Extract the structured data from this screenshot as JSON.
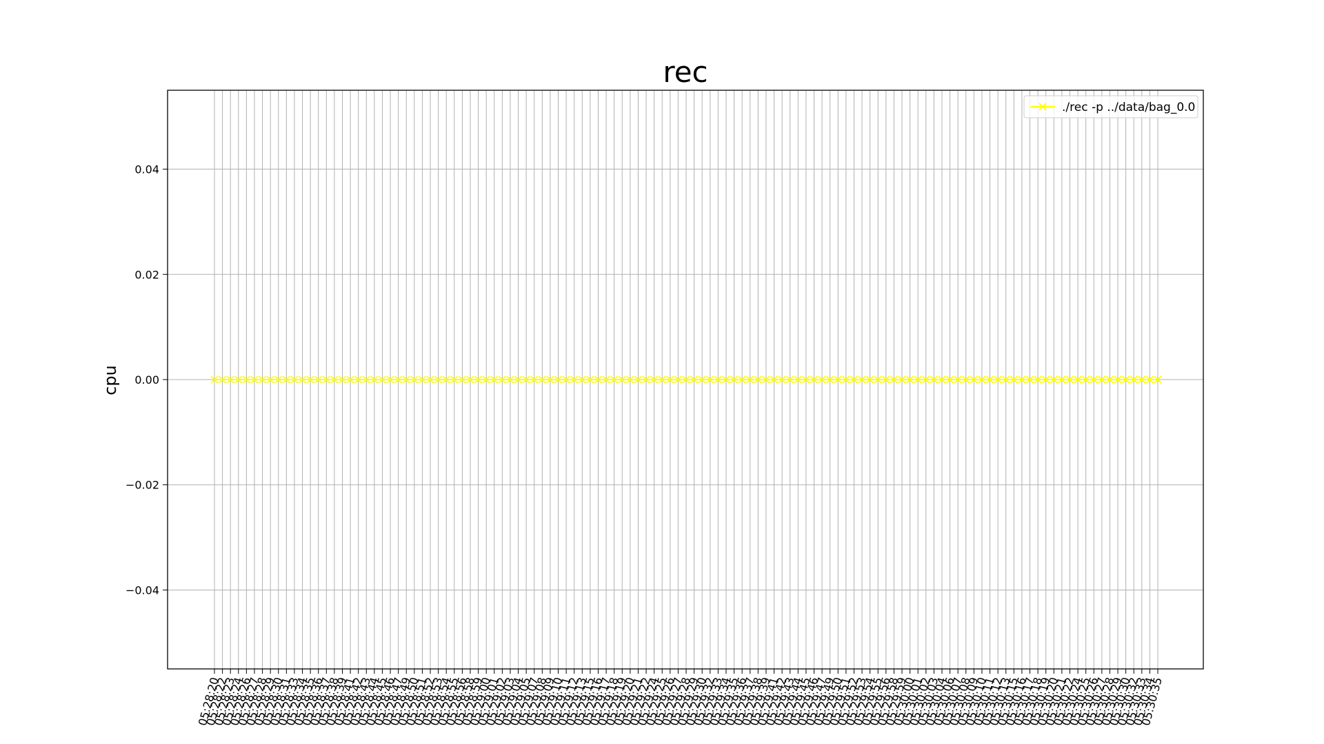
{
  "chart_data": {
    "type": "line",
    "title": "rec",
    "xlabel": "",
    "ylabel": "cpu",
    "ylim": [
      -0.055,
      0.055
    ],
    "yticks": [
      -0.04,
      -0.02,
      0.0,
      0.02,
      0.04
    ],
    "ytick_labels": [
      "−0.04",
      "−0.02",
      "0.00",
      "0.02",
      "0.04"
    ],
    "grid": true,
    "legend_position": "top-right",
    "categories": [
      "05:28:20",
      "05:28:22",
      "05:28:23",
      "05:28:24",
      "05:28:26",
      "05:28:27",
      "05:28:28",
      "05:28:29",
      "05:28:30",
      "05:28:31",
      "05:28:33",
      "05:28:34",
      "05:28:35",
      "05:28:36",
      "05:28:37",
      "05:28:38",
      "05:28:39",
      "05:28:41",
      "05:28:42",
      "05:28:43",
      "05:28:44",
      "05:28:45",
      "05:28:46",
      "05:28:47",
      "05:28:49",
      "05:28:50",
      "05:28:51",
      "05:28:52",
      "05:28:53",
      "05:28:54",
      "05:28:55",
      "05:28:56",
      "05:28:58",
      "05:28:59",
      "05:29:00",
      "05:29:01",
      "05:29:02",
      "05:29:03",
      "05:29:04",
      "05:29:05",
      "05:29:07",
      "05:29:08",
      "05:29:09",
      "05:29:10",
      "05:29:11",
      "05:29:12",
      "05:29:13",
      "05:29:15",
      "05:29:16",
      "05:29:17",
      "05:29:18",
      "05:29:19",
      "05:29:20",
      "05:29:21",
      "05:29:22",
      "05:29:24",
      "05:29:25",
      "05:29:26",
      "05:29:27",
      "05:29:28",
      "05:29:29",
      "05:29:30",
      "05:29:32",
      "05:29:33",
      "05:29:34",
      "05:29:35",
      "05:29:36",
      "05:29:37",
      "05:29:38",
      "05:29:39",
      "05:29:41",
      "05:29:42",
      "05:29:43",
      "05:29:44",
      "05:29:45",
      "05:29:46",
      "05:29:47",
      "05:29:49",
      "05:29:50",
      "05:29:51",
      "05:29:52",
      "05:29:53",
      "05:29:54",
      "05:29:55",
      "05:29:56",
      "05:29:58",
      "05:29:59",
      "05:30:00",
      "05:30:01",
      "05:30:02",
      "05:30:03",
      "05:30:04",
      "05:30:06",
      "05:30:07",
      "05:30:08",
      "05:30:09",
      "05:30:10",
      "05:30:11",
      "05:30:12",
      "05:30:13",
      "05:30:15",
      "05:30:16",
      "05:30:17",
      "05:30:18",
      "05:30:19",
      "05:30:20",
      "05:30:21",
      "05:30:22",
      "05:30:24",
      "05:30:25",
      "05:30:26",
      "05:30:27",
      "05:30:28",
      "05:30:29",
      "05:30:30",
      "05:30:32",
      "05:30:33",
      "05:30:34",
      "05:30:35"
    ],
    "series": [
      {
        "name": "./rec -p ../data/bag_0.0",
        "color": "#ffff00",
        "marker": "x",
        "values": [
          0,
          0,
          0,
          0,
          0,
          0,
          0,
          0,
          0,
          0,
          0,
          0,
          0,
          0,
          0,
          0,
          0,
          0,
          0,
          0,
          0,
          0,
          0,
          0,
          0,
          0,
          0,
          0,
          0,
          0,
          0,
          0,
          0,
          0,
          0,
          0,
          0,
          0,
          0,
          0,
          0,
          0,
          0,
          0,
          0,
          0,
          0,
          0,
          0,
          0,
          0,
          0,
          0,
          0,
          0,
          0,
          0,
          0,
          0,
          0,
          0,
          0,
          0,
          0,
          0,
          0,
          0,
          0,
          0,
          0,
          0,
          0,
          0,
          0,
          0,
          0,
          0,
          0,
          0,
          0,
          0,
          0,
          0,
          0,
          0,
          0,
          0,
          0,
          0,
          0,
          0,
          0,
          0,
          0,
          0,
          0,
          0,
          0,
          0,
          0,
          0,
          0,
          0,
          0,
          0,
          0,
          0,
          0,
          0,
          0,
          0,
          0,
          0,
          0,
          0,
          0,
          0,
          0,
          0
        ]
      }
    ]
  },
  "colors": {
    "background": "#ffffff",
    "grid": "#b0b0b0",
    "axes": "#000000",
    "series": "#ffff00"
  }
}
